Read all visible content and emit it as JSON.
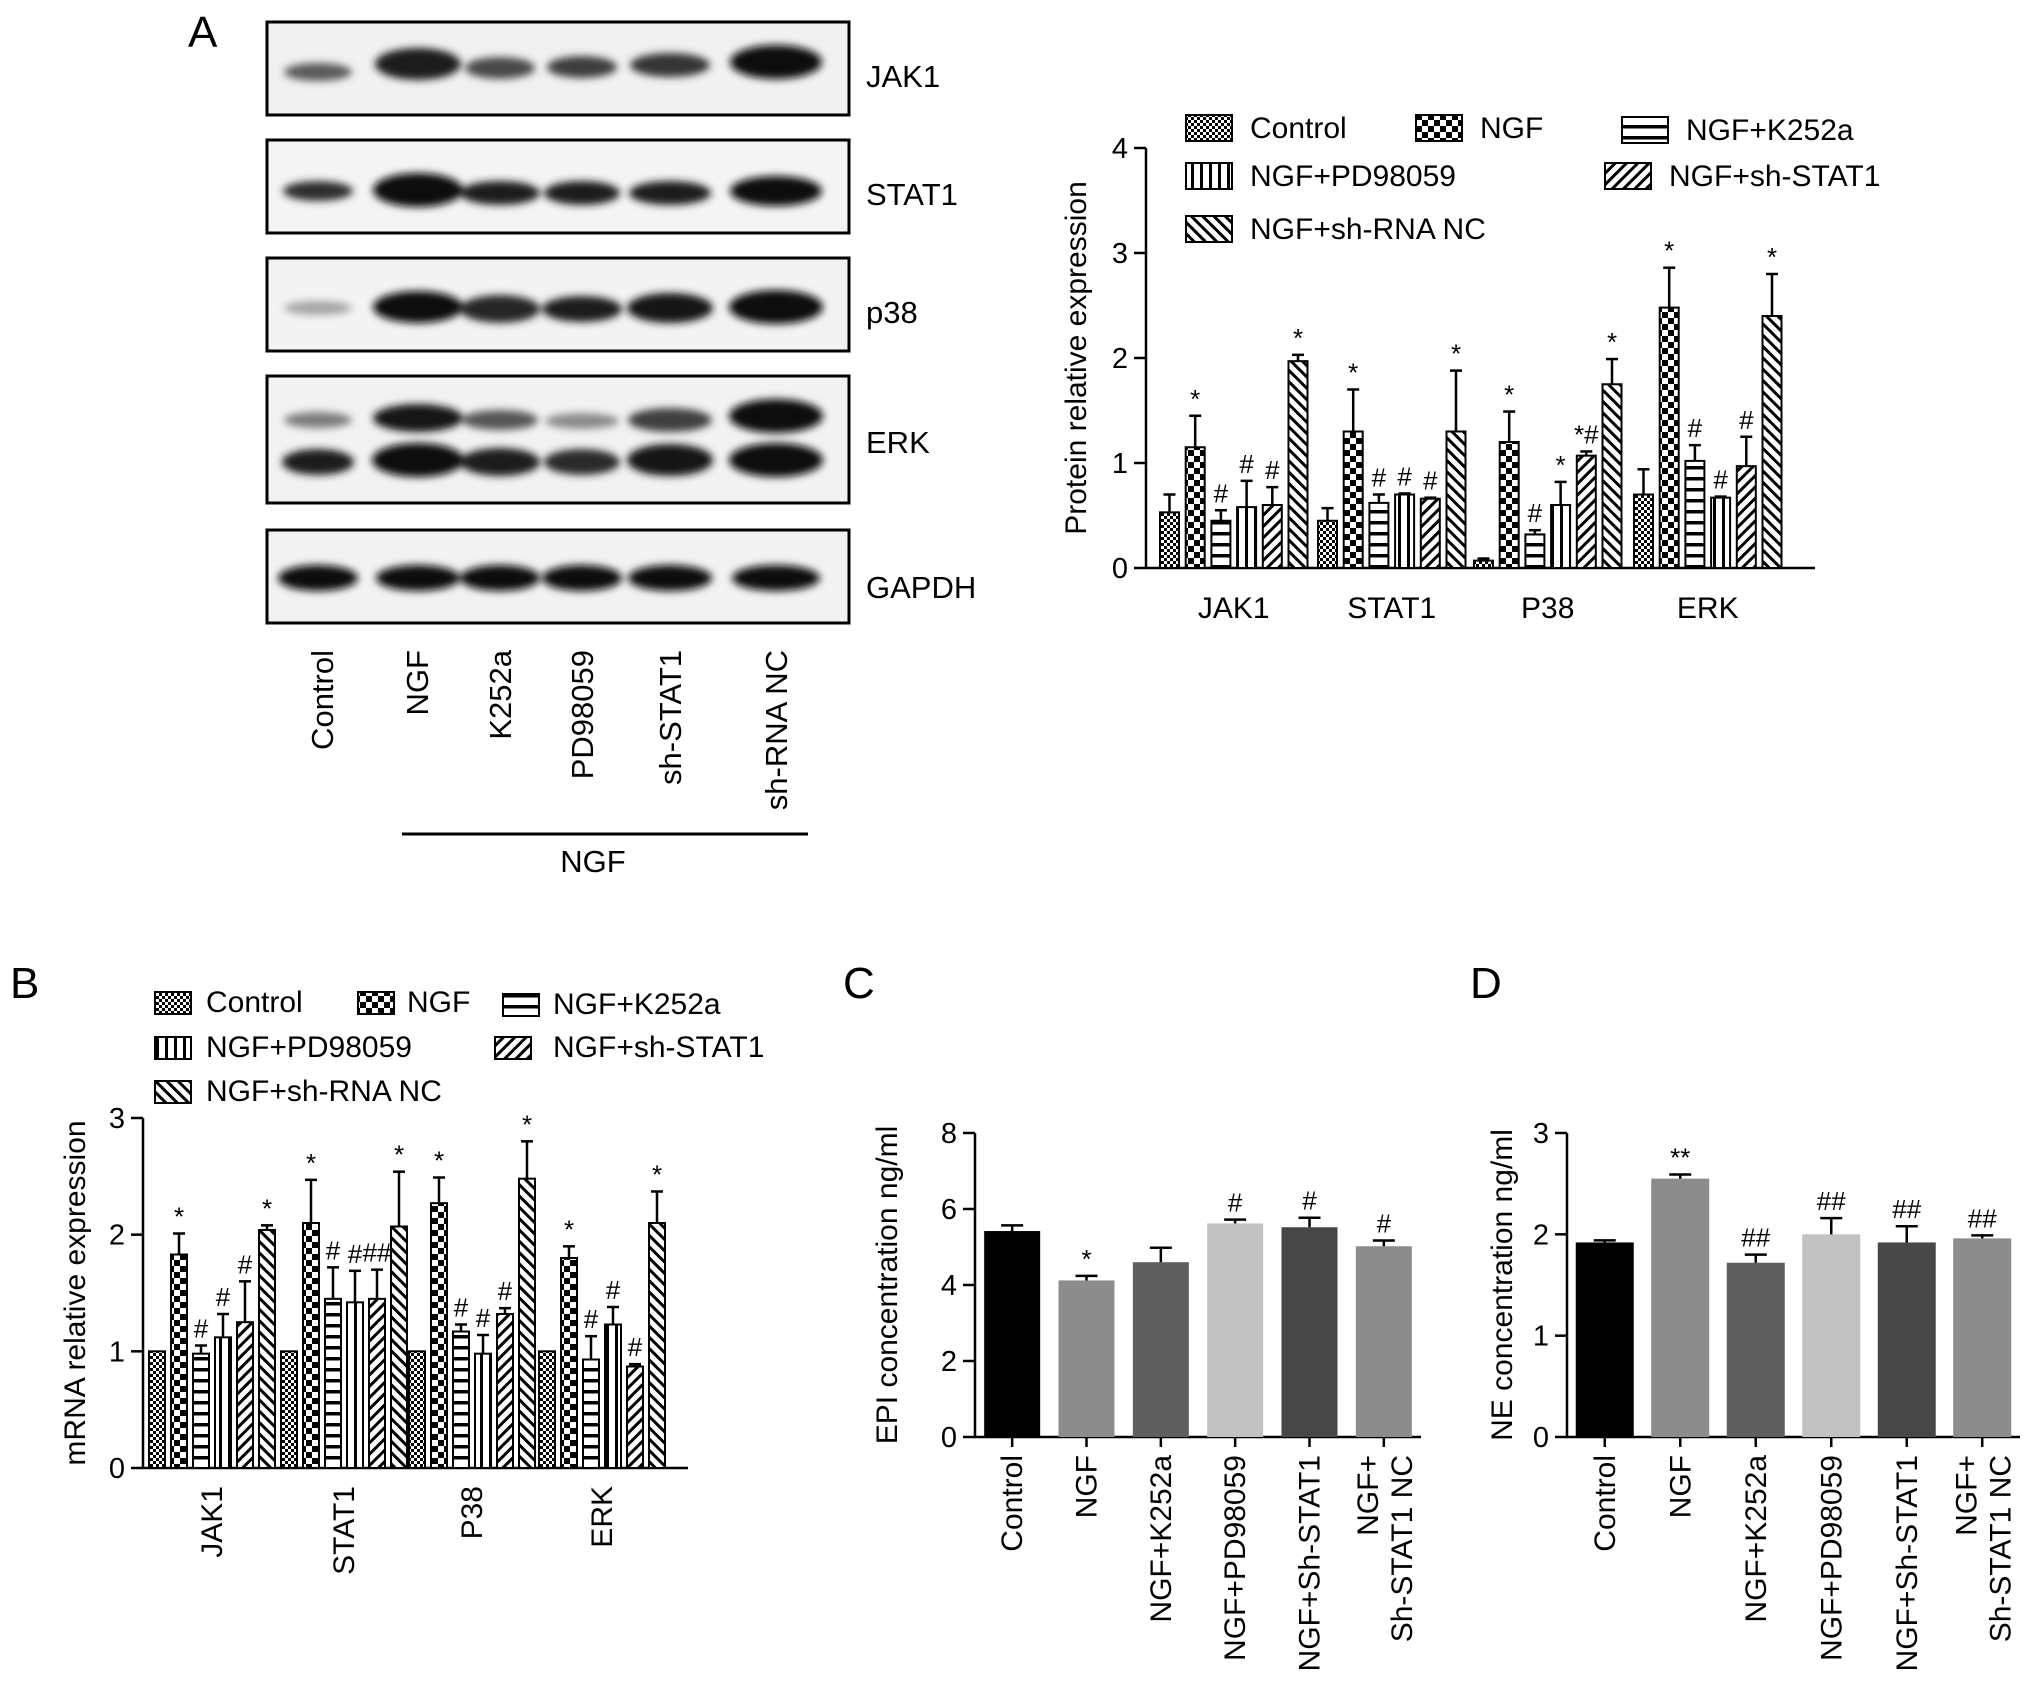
{
  "panels": {
    "A": "A",
    "B": "B",
    "C": "C",
    "D": "D"
  },
  "blot": {
    "proteins": [
      "JAK1",
      "STAT1",
      "p38",
      "ERK",
      "GAPDH"
    ],
    "lanes": [
      "Control",
      "NGF",
      "K252a",
      "PD98059",
      "sh-STAT1",
      "sh-RNA NC"
    ],
    "group_label": "NGF"
  },
  "legend_groups": [
    "Control",
    "NGF",
    "NGF+K252a",
    "NGF+PD98059",
    "NGF+sh-STAT1",
    "NGF+sh-RNA NC"
  ],
  "chart_data": [
    {
      "id": "A",
      "type": "bar",
      "ylabel": "Protein relative expression",
      "xlabel": "",
      "ylim": [
        0,
        4
      ],
      "yticks": [
        0,
        1,
        2,
        3,
        4
      ],
      "categories": [
        "JAK1",
        "STAT1",
        "P38",
        "ERK"
      ],
      "series": [
        {
          "name": "Control",
          "values": [
            0.53,
            0.45,
            0.07,
            0.7
          ],
          "errors": [
            0.17,
            0.12,
            0.02,
            0.24
          ],
          "marks": [
            "",
            "",
            "",
            ""
          ]
        },
        {
          "name": "NGF",
          "values": [
            1.15,
            1.3,
            1.2,
            2.48
          ],
          "errors": [
            0.3,
            0.4,
            0.29,
            0.38
          ],
          "marks": [
            "*",
            "*",
            "*",
            "*"
          ]
        },
        {
          "name": "NGF+K252a",
          "values": [
            0.45,
            0.62,
            0.32,
            1.02
          ],
          "errors": [
            0.1,
            0.08,
            0.04,
            0.15
          ],
          "marks": [
            "#",
            "#",
            "#",
            "#"
          ]
        },
        {
          "name": "NGF+PD98059",
          "values": [
            0.58,
            0.7,
            0.6,
            0.67
          ],
          "errors": [
            0.25,
            0.01,
            0.22,
            0.01
          ],
          "marks": [
            "#",
            "#",
            "*",
            "#"
          ]
        },
        {
          "name": "NGF+sh-STAT1",
          "values": [
            0.6,
            0.66,
            1.07,
            0.97
          ],
          "errors": [
            0.17,
            0.01,
            0.04,
            0.28
          ],
          "marks": [
            "#",
            "#",
            "*#",
            "#"
          ]
        },
        {
          "name": "NGF+sh-RNA NC",
          "values": [
            1.97,
            1.3,
            1.75,
            2.4
          ],
          "errors": [
            0.06,
            0.58,
            0.24,
            0.4
          ],
          "marks": [
            "*",
            "*",
            "*",
            "*"
          ]
        }
      ]
    },
    {
      "id": "B",
      "type": "bar",
      "ylabel": "mRNA relative expression",
      "xlabel": "",
      "ylim": [
        0,
        3
      ],
      "yticks": [
        0,
        1,
        2,
        3
      ],
      "categories": [
        "JAK1",
        "STAT1",
        "P38",
        "ERK"
      ],
      "series": [
        {
          "name": "Control",
          "values": [
            1.0,
            1.0,
            1.0,
            1.0
          ],
          "errors": [
            0,
            0,
            0,
            0
          ],
          "marks": [
            "",
            "",
            "",
            ""
          ]
        },
        {
          "name": "NGF",
          "values": [
            1.83,
            2.1,
            2.27,
            1.8
          ],
          "errors": [
            0.18,
            0.37,
            0.22,
            0.1
          ],
          "marks": [
            "*",
            "*",
            "*",
            "*"
          ]
        },
        {
          "name": "NGF+K252a",
          "values": [
            0.98,
            1.45,
            1.17,
            0.93
          ],
          "errors": [
            0.07,
            0.27,
            0.06,
            0.2
          ],
          "marks": [
            "#",
            "#",
            "#",
            "#"
          ]
        },
        {
          "name": "NGF+PD98059",
          "values": [
            1.12,
            1.42,
            0.98,
            1.23
          ],
          "errors": [
            0.2,
            0.27,
            0.16,
            0.15
          ],
          "marks": [
            "#",
            "#",
            "#",
            "#"
          ]
        },
        {
          "name": "NGF+sh-STAT1",
          "values": [
            1.25,
            1.45,
            1.32,
            0.87
          ],
          "errors": [
            0.35,
            0.25,
            0.05,
            0.02
          ],
          "marks": [
            "#",
            "##",
            "#",
            "#"
          ]
        },
        {
          "name": "NGF+sh-RNA NC",
          "values": [
            2.04,
            2.07,
            2.48,
            2.1
          ],
          "errors": [
            0.04,
            0.47,
            0.32,
            0.27
          ],
          "marks": [
            "*",
            "*",
            "*",
            "*"
          ]
        }
      ]
    },
    {
      "id": "C",
      "type": "bar",
      "ylabel": "EPI concentration ng/ml",
      "xlabel": "",
      "ylim": [
        0,
        8
      ],
      "yticks": [
        0,
        2,
        4,
        6,
        8
      ],
      "categories": [
        "Control",
        "NGF",
        "NGF+K252a",
        "NGF+PD98059",
        "NGF+Sh-STAT1",
        "NGF+ Sh-STAT1 NC"
      ],
      "values": [
        5.42,
        4.12,
        4.6,
        5.62,
        5.52,
        5.02
      ],
      "errors": [
        0.15,
        0.12,
        0.38,
        0.1,
        0.25,
        0.15
      ],
      "marks": [
        "",
        "*",
        "",
        "#",
        "#",
        "#"
      ],
      "colors": [
        "#000000",
        "#8c8c8c",
        "#5f5f5f",
        "#c2c2c2",
        "#474747",
        "#8c8c8c"
      ]
    },
    {
      "id": "D",
      "type": "bar",
      "ylabel": "NE concentration ng/ml",
      "xlabel": "",
      "ylim": [
        0,
        3
      ],
      "yticks": [
        0,
        1,
        2,
        3
      ],
      "categories": [
        "Control",
        "NGF",
        "NGF+K252a",
        "NGF+PD98059",
        "NGF+Sh-STAT1",
        "NGF+ Sh-STAT1 NC"
      ],
      "values": [
        1.92,
        2.55,
        1.72,
        2.0,
        1.92,
        1.96
      ],
      "errors": [
        0.02,
        0.04,
        0.08,
        0.16,
        0.16,
        0.03
      ],
      "marks": [
        "",
        "**",
        "##",
        "##",
        "##",
        "##"
      ],
      "colors": [
        "#000000",
        "#8c8c8c",
        "#5f5f5f",
        "#c2c2c2",
        "#474747",
        "#8c8c8c"
      ]
    }
  ]
}
